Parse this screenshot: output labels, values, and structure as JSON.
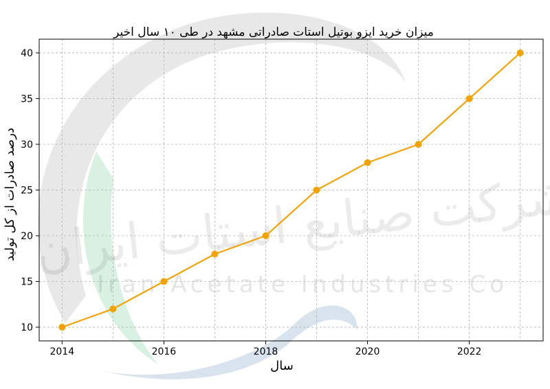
{
  "chart_data": {
    "type": "line",
    "title": "میزان خرید ایزو بوتیل استات صادراتی مشهد در طی ۱۰ سال اخیر",
    "xlabel": "سال",
    "ylabel": "درصد صادرات از کل تولید",
    "x": [
      2014,
      2015,
      2016,
      2017,
      2018,
      2019,
      2020,
      2021,
      2022,
      2023
    ],
    "values": [
      10,
      12,
      15,
      18,
      20,
      25,
      28,
      30,
      35,
      40
    ],
    "xlim": [
      2013.55,
      2023.45
    ],
    "ylim": [
      8.5,
      41.5
    ],
    "xticks": [
      2014,
      2016,
      2018,
      2020,
      2022
    ],
    "yticks": [
      10,
      15,
      20,
      25,
      30,
      35,
      40
    ],
    "grid": true,
    "color": "#f0a30a"
  },
  "watermark": {
    "text_en": "Iran Acetate Industries Co",
    "text_fa": "شرکت صنایع استات ایران",
    "colors": [
      "#bdbdbd",
      "#8fd6b0",
      "#a8c0d8"
    ]
  }
}
